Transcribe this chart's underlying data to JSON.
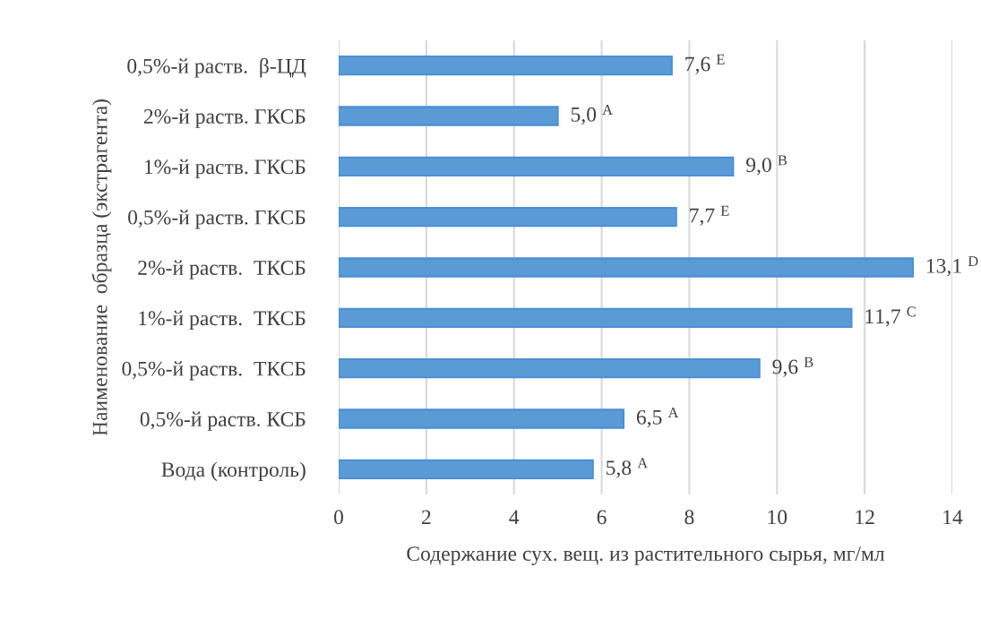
{
  "chart_data": {
    "type": "bar",
    "orientation": "horizontal",
    "xlabel": "Содержание сух. вещ. из растительного сырья, мг/мл",
    "ylabel": "Наименование  образца (экстрагента)",
    "categories": [
      "0,5%-й раств.  β-ЦД",
      "2%-й раств. ГКСБ",
      "1%-й раств. ГКСБ",
      "0,5%-й раств. ГКСБ",
      "2%-й раств.  ТКСБ",
      "1%-й раств.  ТКСБ",
      "0,5%-й раств.  ТКСБ",
      "0,5%-й раств. КСБ",
      "Вода (контроль)"
    ],
    "values": [
      7.6,
      5.0,
      9.0,
      7.7,
      13.1,
      11.7,
      9.6,
      6.5,
      5.8
    ],
    "value_labels": [
      "7,6 $^{E}$",
      "5,0 $^{A}$",
      "9,0 $^{B}$",
      "7,7 $^{E}$",
      "13,1 $^{D}$",
      "11,7 $^{C}$",
      "9,6 $^{B}$",
      "6,5 $^{A}$",
      "5,8 $^{A}$"
    ],
    "color": "#5b9bd5",
    "xlim": [
      0,
      14
    ],
    "xticks": [
      0,
      2,
      4,
      6,
      8,
      10,
      12,
      14
    ],
    "grid": "x"
  }
}
